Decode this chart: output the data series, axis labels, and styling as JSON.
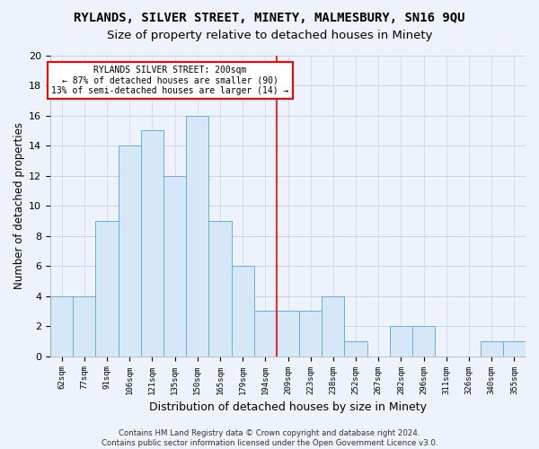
{
  "title": "RYLANDS, SILVER STREET, MINETY, MALMESBURY, SN16 9QU",
  "subtitle": "Size of property relative to detached houses in Minety",
  "xlabel": "Distribution of detached houses by size in Minety",
  "ylabel": "Number of detached properties",
  "categories": [
    "62sqm",
    "77sqm",
    "91sqm",
    "106sqm",
    "121sqm",
    "135sqm",
    "150sqm",
    "165sqm",
    "179sqm",
    "194sqm",
    "209sqm",
    "223sqm",
    "238sqm",
    "252sqm",
    "267sqm",
    "282sqm",
    "296sqm",
    "311sqm",
    "326sqm",
    "340sqm",
    "355sqm"
  ],
  "values": [
    4,
    4,
    9,
    14,
    15,
    12,
    16,
    9,
    6,
    3,
    3,
    3,
    4,
    1,
    0,
    2,
    2,
    0,
    0,
    1,
    1
  ],
  "bar_color": "#d6e8f7",
  "bar_edgecolor": "#6aaed6",
  "ylim": [
    0,
    20
  ],
  "yticks": [
    0,
    2,
    4,
    6,
    8,
    10,
    12,
    14,
    16,
    18,
    20
  ],
  "redline_index": 9.5,
  "annotation_line1": "RYLANDS SILVER STREET: 200sqm",
  "annotation_line2": "← 87% of detached houses are smaller (90)",
  "annotation_line3": "13% of semi-detached houses are larger (14) →",
  "footer": "Contains HM Land Registry data © Crown copyright and database right 2024.\nContains public sector information licensed under the Open Government Licence v3.0.",
  "background_color": "#eef2fa",
  "plot_background": "#eef2fa",
  "grid_color": "#c8d4e8",
  "title_fontsize": 10,
  "subtitle_fontsize": 9.5,
  "ylabel_fontsize": 8.5,
  "xlabel_fontsize": 9
}
